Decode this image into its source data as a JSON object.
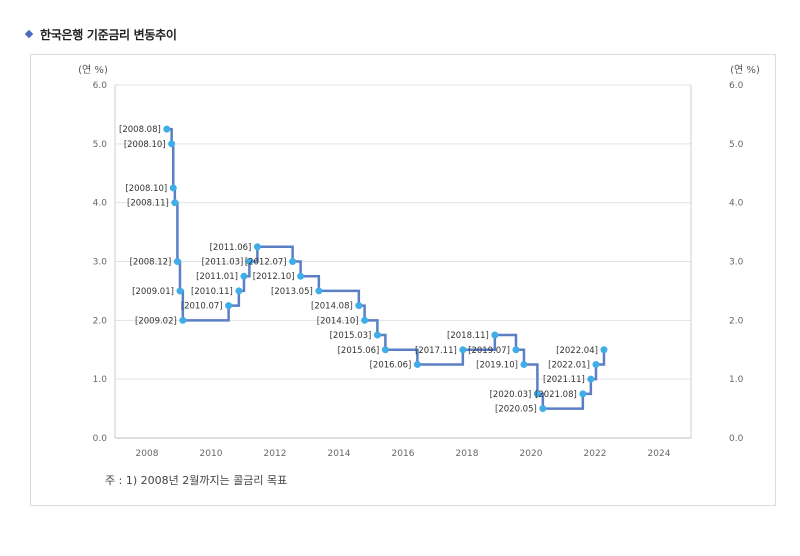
{
  "page": {
    "title": "한국은행 기준금리 변동추이",
    "note": "주 : 1) 2008년 2월까지는 콜금리 목표"
  },
  "chart_data": {
    "type": "line",
    "line_shape": "step",
    "title": "한국은행 기준금리 변동추이",
    "ylabel_left": "(연 %)",
    "ylabel_right": "(연 %)",
    "xlim": [
      2007,
      2025
    ],
    "ylim": [
      0,
      6
    ],
    "x_ticks": [
      "2008",
      "2010",
      "2012",
      "2014",
      "2016",
      "2018",
      "2020",
      "2022",
      "2024"
    ],
    "y_ticks": [
      "0.0",
      "1.0",
      "2.0",
      "3.0",
      "4.0",
      "5.0",
      "6.0"
    ],
    "grid": "horizontal",
    "colors": {
      "line": "#5b7fc4",
      "point": "#3faee8"
    },
    "series": [
      {
        "points": [
          {
            "label": "[2008.08]",
            "x": 2008.62,
            "y": 5.25
          },
          {
            "label": "[2008.10]",
            "x": 2008.77,
            "y": 5.0
          },
          {
            "label": "[2008.10]",
            "x": 2008.82,
            "y": 4.25
          },
          {
            "label": "[2008.11]",
            "x": 2008.87,
            "y": 4.0
          },
          {
            "label": "[2008.12]",
            "x": 2008.95,
            "y": 3.0
          },
          {
            "label": "[2009.01]",
            "x": 2009.03,
            "y": 2.5
          },
          {
            "label": "[2009.02]",
            "x": 2009.12,
            "y": 2.0
          },
          {
            "label": "[2010.07]",
            "x": 2010.55,
            "y": 2.25
          },
          {
            "label": "[2010.11]",
            "x": 2010.87,
            "y": 2.5
          },
          {
            "label": "[2011.01]",
            "x": 2011.03,
            "y": 2.75
          },
          {
            "label": "[2011.03]",
            "x": 2011.2,
            "y": 3.0
          },
          {
            "label": "[2011.06]",
            "x": 2011.45,
            "y": 3.25
          },
          {
            "label": "[2012.07]",
            "x": 2012.55,
            "y": 3.0
          },
          {
            "label": "[2012.10]",
            "x": 2012.8,
            "y": 2.75
          },
          {
            "label": "[2013.05]",
            "x": 2013.37,
            "y": 2.5
          },
          {
            "label": "[2014.08]",
            "x": 2014.62,
            "y": 2.25
          },
          {
            "label": "[2014.10]",
            "x": 2014.8,
            "y": 2.0
          },
          {
            "label": "[2015.03]",
            "x": 2015.2,
            "y": 1.75
          },
          {
            "label": "[2015.06]",
            "x": 2015.45,
            "y": 1.5
          },
          {
            "label": "[2016.06]",
            "x": 2016.45,
            "y": 1.25
          },
          {
            "label": "[2017.11]",
            "x": 2017.87,
            "y": 1.5
          },
          {
            "label": "[2018.11]",
            "x": 2018.87,
            "y": 1.75
          },
          {
            "label": "[2019.07]",
            "x": 2019.53,
            "y": 1.5
          },
          {
            "label": "[2019.10]",
            "x": 2019.78,
            "y": 1.25
          },
          {
            "label": "[2020.03]",
            "x": 2020.2,
            "y": 0.75
          },
          {
            "label": "[2020.05]",
            "x": 2020.37,
            "y": 0.5
          },
          {
            "label": "[2021.08]",
            "x": 2021.62,
            "y": 0.75
          },
          {
            "label": "[2021.11]",
            "x": 2021.87,
            "y": 1.0
          },
          {
            "label": "[2022.01]",
            "x": 2022.03,
            "y": 1.25
          },
          {
            "label": "[2022.04]",
            "x": 2022.28,
            "y": 1.5
          }
        ]
      }
    ]
  }
}
